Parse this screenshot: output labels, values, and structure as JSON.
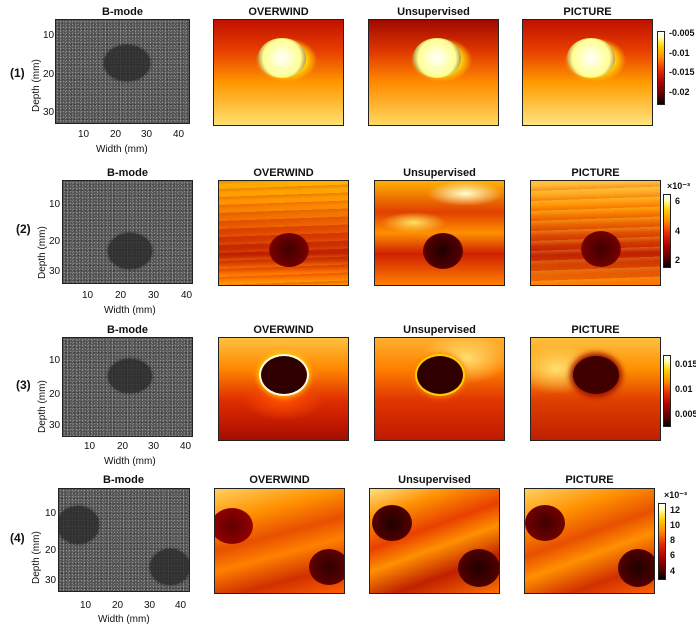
{
  "column_titles": [
    "B-mode",
    "OVERWIND",
    "Unsupervised",
    "PICTURE"
  ],
  "row_labels": [
    "(1)",
    "(2)",
    "(3)",
    "(4)"
  ],
  "axis": {
    "xlabel": "Width (mm)",
    "ylabel": "Depth (mm)",
    "x_ticks": [
      "10",
      "20",
      "30",
      "40"
    ],
    "y_ticks": [
      "10",
      "20",
      "30"
    ]
  },
  "colorbars": [
    {
      "exponent": "",
      "ticks": [
        "-0.005",
        "-0.01",
        "-0.015",
        "-0.02"
      ]
    },
    {
      "exponent": "×10⁻³",
      "ticks": [
        "6",
        "4",
        "2"
      ]
    },
    {
      "exponent": "",
      "ticks": [
        "0.015",
        "0.01",
        "0.005"
      ]
    },
    {
      "exponent": "×10⁻³",
      "ticks": [
        "12",
        "10",
        "8",
        "6",
        "4"
      ]
    }
  ],
  "colormap": [
    "#000000",
    "#b00000",
    "#ff8c00",
    "#ffd200",
    "#ffffff"
  ]
}
